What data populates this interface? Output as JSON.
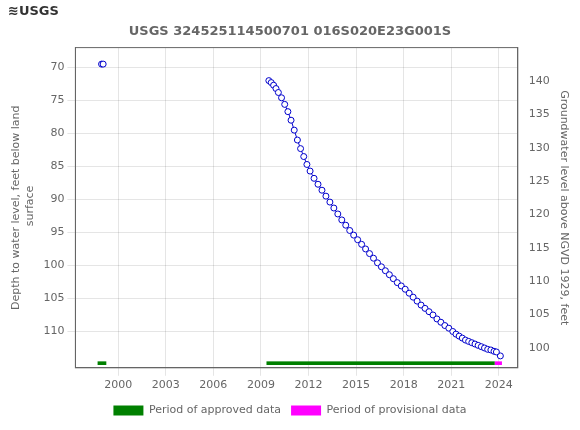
{
  "chart_data": {
    "type": "line",
    "title": "USGS 324525114500701 016S020E23G001S",
    "annotations": [
      "≋USGS"
    ],
    "ylabel": "Depth to water level, feet below land\n surface",
    "y2label": "Groundwater level above NGVD 1929, feet",
    "xlim": [
      1997.3,
      2025.2
    ],
    "xticks": [
      2000,
      2003,
      2006,
      2009,
      2012,
      2015,
      2018,
      2021,
      2024
    ],
    "ylim": [
      115.5,
      67.0
    ],
    "yticks": [
      70,
      75,
      80,
      85,
      90,
      95,
      100,
      105,
      110
    ],
    "y2lim": [
      97.0,
      145.0
    ],
    "y2ticks": [
      100,
      105,
      110,
      115,
      120,
      125,
      130,
      135,
      140
    ],
    "grid": true,
    "legend": "bottom",
    "series": [
      {
        "color": "#0000cc",
        "marker": "circle",
        "line_style": "solid",
        "x": [
          1998.95,
          1999.05
        ],
        "values": [
          69.5,
          69.5
        ]
      },
      {
        "color": "#0000cc",
        "marker": "circle",
        "line_style": "solid",
        "x": [
          2009.5,
          2009.65,
          2009.8,
          2009.95,
          2010.1,
          2010.3,
          2010.5,
          2010.7,
          2010.9,
          2011.1,
          2011.3,
          2011.5,
          2011.7,
          2011.9,
          2012.1,
          2012.35,
          2012.6,
          2012.85,
          2013.1,
          2013.35,
          2013.6,
          2013.85,
          2014.1,
          2014.35,
          2014.6,
          2014.85,
          2015.1,
          2015.35,
          2015.6,
          2015.85,
          2016.1,
          2016.35,
          2016.6,
          2016.85,
          2017.1,
          2017.35,
          2017.6,
          2017.85,
          2018.1,
          2018.35,
          2018.6,
          2018.85,
          2019.1,
          2019.35,
          2019.6,
          2019.85,
          2020.1,
          2020.35,
          2020.6,
          2020.85,
          2021.1,
          2021.3,
          2021.5,
          2021.7,
          2021.9,
          2022.1,
          2022.3,
          2022.5,
          2022.7,
          2022.9,
          2023.1,
          2023.3,
          2023.5,
          2023.7,
          2023.85
        ],
        "values": [
          72.0,
          72.3,
          72.7,
          73.2,
          73.8,
          74.6,
          75.6,
          76.7,
          78.0,
          79.5,
          81.0,
          82.3,
          83.5,
          84.7,
          85.7,
          86.8,
          87.7,
          88.6,
          89.5,
          90.4,
          91.3,
          92.2,
          93.1,
          93.9,
          94.7,
          95.4,
          96.1,
          96.8,
          97.5,
          98.2,
          98.9,
          99.6,
          100.2,
          100.8,
          101.4,
          102.0,
          102.6,
          103.1,
          103.6,
          104.2,
          104.8,
          105.4,
          106.0,
          106.5,
          107.0,
          107.5,
          108.1,
          108.6,
          109.1,
          109.5,
          110.0,
          110.4,
          110.7,
          111.0,
          111.3,
          111.5,
          111.7,
          111.9,
          112.1,
          112.3,
          112.5,
          112.7,
          112.8,
          113.0,
          113.1
        ]
      },
      {
        "color": "#0000cc",
        "marker": "circle",
        "line_style": "solid",
        "x": [
          2024.1
        ],
        "values": [
          113.7
        ]
      },
      {
        "name": "Period of approved data",
        "type": "bar",
        "color": "#008000",
        "ranges": [
          [
            1998.7,
            1999.25
          ],
          [
            2009.35,
            2023.75
          ]
        ],
        "y": 114.8,
        "height": 0.55
      },
      {
        "name": "Period of provisional data",
        "type": "bar",
        "color": "#ff00ff",
        "ranges": [
          [
            2023.75,
            2024.2
          ]
        ],
        "y": 114.8,
        "height": 0.55
      }
    ]
  }
}
